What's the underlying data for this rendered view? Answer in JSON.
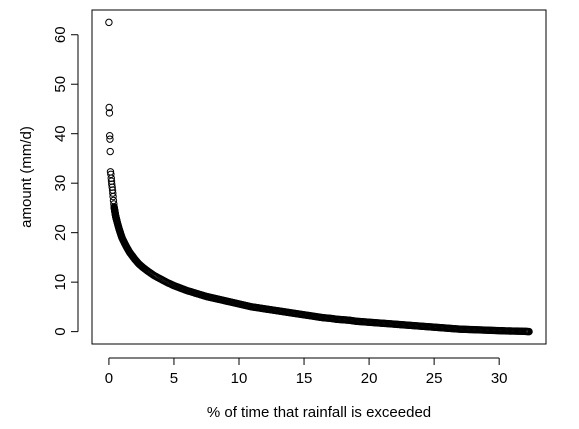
{
  "chart_data": {
    "type": "scatter",
    "title": "",
    "xlabel": "% of time that rainfall is exceeded",
    "ylabel": "amount (mm/d)",
    "xlim": [
      -1.3,
      33.6
    ],
    "ylim": [
      -2.5,
      65
    ],
    "x_ticks": [
      0,
      5,
      10,
      15,
      20,
      25,
      30
    ],
    "y_ticks": [
      0,
      10,
      20,
      30,
      40,
      50,
      60
    ],
    "x_tick_labels": [
      "0",
      "5",
      "10",
      "15",
      "20",
      "25",
      "30"
    ],
    "y_tick_labels": [
      "0",
      "10",
      "20",
      "30",
      "40",
      "50",
      "60"
    ],
    "grid": false,
    "legend": "none",
    "marker": "open-circle",
    "point_color": "#000000",
    "series": [
      {
        "x": [
          0.0,
          0.02,
          0.04,
          0.06,
          0.08,
          0.1,
          0.12,
          0.15,
          0.18,
          0.2,
          0.22,
          0.25,
          0.28,
          0.3,
          0.32,
          0.35,
          0.38,
          0.4,
          0.45,
          0.5,
          0.55,
          0.6,
          0.7,
          0.8,
          0.9,
          1.0,
          1.2,
          1.4,
          1.6,
          1.8,
          2.0,
          2.3,
          2.6,
          3.0,
          3.5,
          4.0,
          4.5,
          5.0,
          5.5,
          6.0,
          6.5,
          7.0,
          7.5,
          8.0,
          8.5,
          9.0,
          9.5,
          10.0,
          10.5,
          11.0,
          11.5,
          12.0,
          12.5,
          13.0,
          13.5,
          14.0,
          14.5,
          15.0,
          15.5,
          16.0,
          16.5,
          17.0,
          17.5,
          18.0,
          18.5,
          19.0,
          19.5,
          20.0,
          20.5,
          21.0,
          21.5,
          22.0,
          22.5,
          23.0,
          23.5,
          24.0,
          24.5,
          25.0,
          25.5,
          26.0,
          26.5,
          27.0,
          27.5,
          28.0,
          28.5,
          29.0,
          29.5,
          30.0,
          30.5,
          31.0,
          31.5,
          32.0,
          32.3
        ],
        "y": [
          62.5,
          45.3,
          44.2,
          39.6,
          38.9,
          36.4,
          32.3,
          31.8,
          31.0,
          30.4,
          29.8,
          29.2,
          28.6,
          28.0,
          27.3,
          26.5,
          25.8,
          25.2,
          24.4,
          23.6,
          23.0,
          22.5,
          21.5,
          20.6,
          19.8,
          19.0,
          17.9,
          16.9,
          16.0,
          15.3,
          14.6,
          13.7,
          13.0,
          12.2,
          11.3,
          10.6,
          9.9,
          9.3,
          8.8,
          8.3,
          7.9,
          7.5,
          7.1,
          6.8,
          6.5,
          6.2,
          5.9,
          5.6,
          5.3,
          5.0,
          4.8,
          4.6,
          4.4,
          4.2,
          4.0,
          3.8,
          3.6,
          3.4,
          3.2,
          3.0,
          2.8,
          2.7,
          2.5,
          2.4,
          2.3,
          2.1,
          2.0,
          1.9,
          1.8,
          1.7,
          1.6,
          1.5,
          1.4,
          1.3,
          1.2,
          1.1,
          1.0,
          0.9,
          0.8,
          0.7,
          0.6,
          0.5,
          0.45,
          0.4,
          0.35,
          0.3,
          0.25,
          0.2,
          0.15,
          0.12,
          0.1,
          0.05,
          0.0
        ]
      }
    ]
  }
}
